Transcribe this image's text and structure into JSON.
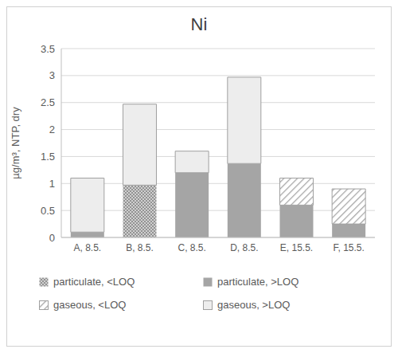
{
  "chart_data": {
    "type": "bar",
    "title": "Ni",
    "y_label": "µg/m³, NTP, dry",
    "categories": [
      "A, 8.5.",
      "B, 8.5.",
      "C, 8.5.",
      "D, 8.5.",
      "E, 15.5.",
      "F, 15.5."
    ],
    "series": [
      {
        "name": "particulate, <LOQ",
        "color": "#7f7f7f",
        "values": [
          0,
          0.97,
          0,
          0,
          0,
          0
        ]
      },
      {
        "name": "particulate, >LOQ",
        "color": "#a5a5a5",
        "values": [
          0.1,
          0,
          1.2,
          1.37,
          0.6,
          0.25
        ]
      },
      {
        "name": "gaseous, <LOQ",
        "color": "#a5a5a5",
        "values": [
          0,
          0,
          0,
          0,
          0.5,
          0.65
        ]
      },
      {
        "name": "gaseous, >LOQ",
        "color": "#ededed",
        "values": [
          1.0,
          1.5,
          0.4,
          1.6,
          0,
          0
        ]
      }
    ],
    "stacked": true,
    "ylim": [
      0,
      3.5
    ],
    "yticks": [
      0,
      0.5,
      1,
      1.5,
      2,
      2.5,
      3,
      3.5
    ],
    "grid": true,
    "legend": "bottom"
  }
}
